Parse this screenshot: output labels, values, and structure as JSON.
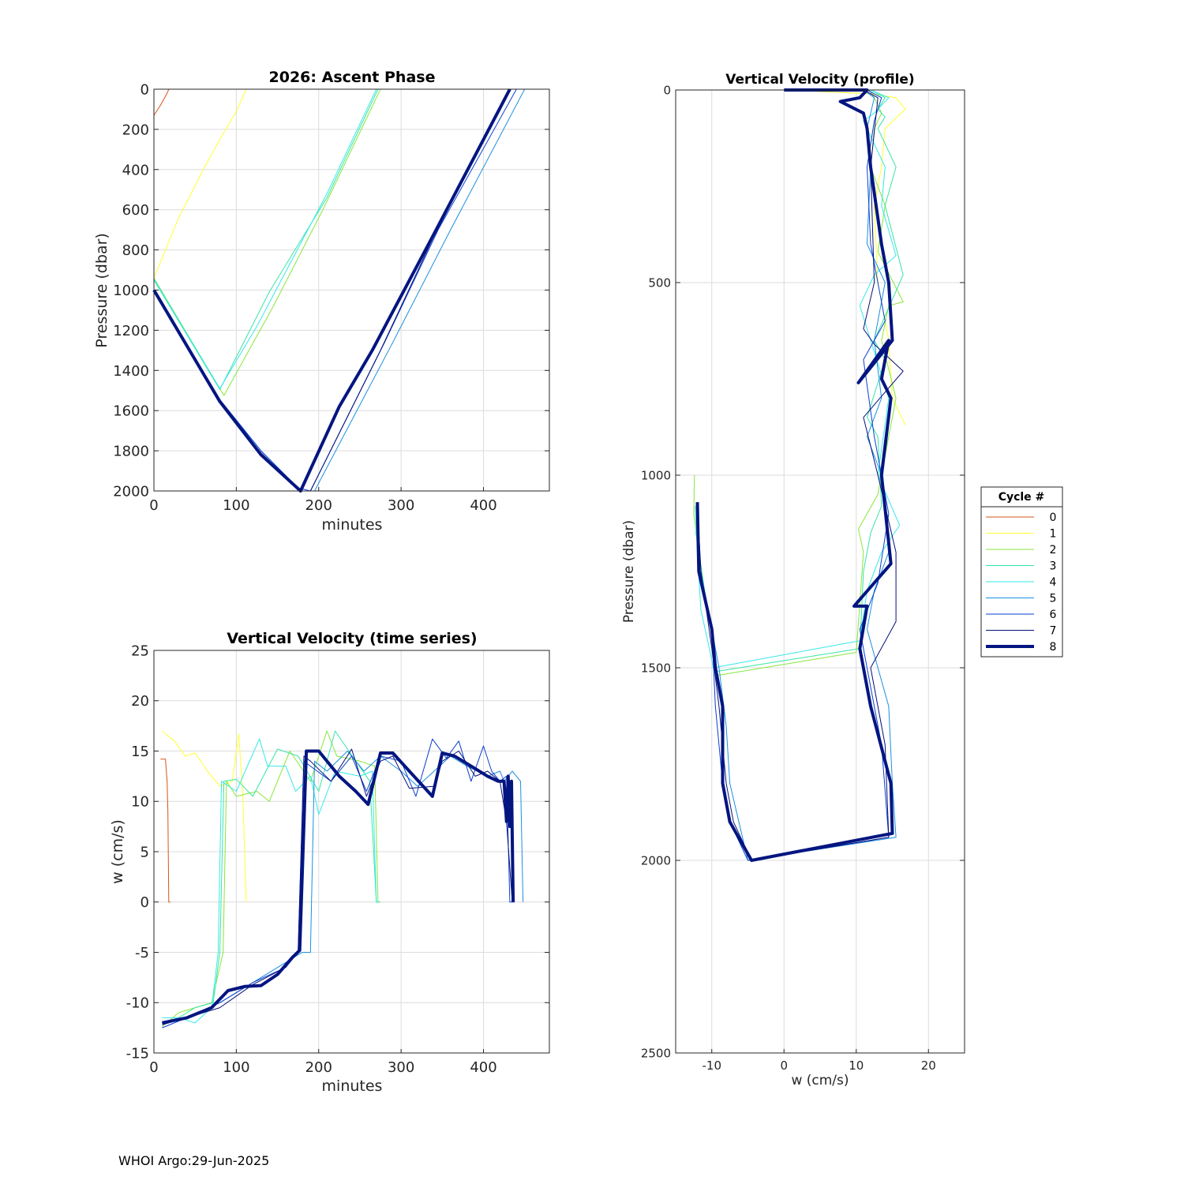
{
  "footer": "WHOI Argo:29-Jun-2025",
  "legend": {
    "title": "Cycle #",
    "entries": [
      "0",
      "1",
      "2",
      "3",
      "4",
      "5",
      "6",
      "7",
      "8"
    ],
    "colors": [
      "#d95319",
      "#ffff33",
      "#88e63c",
      "#36e6a4",
      "#36e8e8",
      "#1b8fe0",
      "#0a3fd0",
      "#06107a",
      "#041580"
    ]
  },
  "chart_data": [
    {
      "type": "line",
      "title": "2026: Ascent Phase",
      "xlabel": "minutes",
      "ylabel": "Pressure (dbar)",
      "xlim": [
        0,
        480
      ],
      "ylim": [
        0,
        2000
      ],
      "y_reversed": true,
      "grid": true,
      "xticks": [
        0,
        100,
        200,
        300,
        400
      ],
      "yticks": [
        0,
        200,
        400,
        600,
        800,
        1000,
        1200,
        1400,
        1600,
        1800,
        2000
      ],
      "series": [
        {
          "name": "0",
          "x": [
            0,
            8,
            16,
            18,
            22
          ],
          "y": [
            130,
            80,
            20,
            0,
            0
          ]
        },
        {
          "name": "1",
          "x": [
            0,
            30,
            60,
            80,
            100,
            112
          ],
          "y": [
            940,
            640,
            400,
            250,
            110,
            0
          ]
        },
        {
          "name": "2",
          "x": [
            0,
            85,
            145,
            205,
            275
          ],
          "y": [
            940,
            1525,
            1080,
            600,
            0
          ]
        },
        {
          "name": "3",
          "x": [
            0,
            80,
            140,
            210,
            272
          ],
          "y": [
            950,
            1495,
            1010,
            540,
            0
          ]
        },
        {
          "name": "4",
          "x": [
            0,
            80,
            125,
            210,
            270
          ],
          "y": [
            945,
            1490,
            1180,
            520,
            0
          ]
        },
        {
          "name": "5",
          "x": [
            0,
            80,
            130,
            178,
            195,
            290,
            360,
            450
          ],
          "y": [
            1010,
            1550,
            1800,
            2000,
            2000,
            1260,
            700,
            0
          ]
        },
        {
          "name": "6",
          "x": [
            0,
            80,
            130,
            175,
            190,
            280,
            345,
            440
          ],
          "y": [
            1005,
            1545,
            1800,
            1985,
            2000,
            1260,
            700,
            0
          ]
        },
        {
          "name": "7",
          "x": [
            0,
            80,
            130,
            178,
            190,
            275,
            340,
            432
          ],
          "y": [
            1000,
            1560,
            1810,
            2000,
            2000,
            1300,
            730,
            0
          ]
        },
        {
          "name": "8",
          "x": [
            0,
            80,
            130,
            178,
            225,
            265,
            340,
            432
          ],
          "y": [
            1000,
            1555,
            1820,
            2000,
            1580,
            1300,
            720,
            0
          ]
        }
      ]
    },
    {
      "type": "line",
      "title": "Vertical Velocity (time series)",
      "xlabel": "minutes",
      "ylabel": "w (cm/s)",
      "xlim": [
        0,
        480
      ],
      "ylim": [
        -15,
        25
      ],
      "grid": true,
      "xticks": [
        0,
        100,
        200,
        300,
        400
      ],
      "yticks": [
        -15,
        -10,
        -5,
        0,
        5,
        10,
        15,
        20,
        25
      ],
      "series": [
        {
          "name": "0",
          "x": [
            8,
            14,
            16,
            17,
            18,
            20
          ],
          "y": [
            14.2,
            14.2,
            12,
            9,
            0,
            0
          ]
        },
        {
          "name": "1",
          "x": [
            10,
            25,
            38,
            50,
            65,
            80,
            95,
            103,
            108,
            112
          ],
          "y": [
            17,
            16,
            14.5,
            14.8,
            13,
            11.5,
            12,
            16.7,
            10.5,
            0
          ]
        },
        {
          "name": "2",
          "x": [
            10,
            30,
            50,
            70,
            84,
            88,
            100,
            125,
            140,
            165,
            190,
            210,
            222,
            250,
            268,
            272,
            275
          ],
          "y": [
            -12.4,
            -11,
            -10.5,
            -10,
            -5,
            12,
            10.5,
            11,
            10,
            15,
            12,
            17,
            14.5,
            14,
            13.5,
            0,
            0
          ]
        },
        {
          "name": "3",
          "x": [
            10,
            30,
            50,
            72,
            80,
            85,
            100,
            120,
            150,
            175,
            200,
            220,
            245,
            262,
            270,
            274
          ],
          "y": [
            -12,
            -11.5,
            -10.5,
            -10,
            -5,
            12,
            12.2,
            10.5,
            15.2,
            14.5,
            11,
            17,
            14,
            12,
            0,
            0
          ]
        },
        {
          "name": "4",
          "x": [
            10,
            30,
            50,
            70,
            78,
            82,
            100,
            128,
            138,
            160,
            172,
            190,
            200,
            220,
            250,
            265,
            270,
            273
          ],
          "y": [
            -11.5,
            -11.5,
            -12,
            -10.5,
            -5,
            12,
            11,
            16.2,
            13.5,
            13.5,
            11,
            12.5,
            8.7,
            13,
            12.5,
            13,
            0,
            0
          ]
        },
        {
          "name": "5",
          "x": [
            10,
            40,
            80,
            120,
            160,
            180,
            190,
            195,
            210,
            235,
            255,
            275,
            300,
            320,
            340,
            360,
            380,
            405,
            420,
            425,
            435,
            445,
            448
          ],
          "y": [
            -12,
            -11.5,
            -10,
            -8,
            -6,
            -5,
            -5,
            14,
            13,
            15,
            13,
            14.5,
            13,
            11.5,
            13,
            14.5,
            13.5,
            12.5,
            13,
            12,
            13,
            12,
            0
          ]
        },
        {
          "name": "6",
          "x": [
            10,
            40,
            80,
            120,
            160,
            175,
            182,
            190,
            215,
            240,
            258,
            275,
            300,
            318,
            338,
            355,
            370,
            385,
            400,
            410,
            420,
            428,
            432,
            438
          ],
          "y": [
            -12.5,
            -11.5,
            -10,
            -8,
            -6.5,
            -5,
            14,
            13.5,
            12,
            14.5,
            11,
            14.5,
            14,
            10.5,
            16.2,
            14.3,
            16,
            12,
            15.5,
            13,
            12,
            12.5,
            0,
            0
          ]
        },
        {
          "name": "7",
          "x": [
            10,
            40,
            80,
            120,
            160,
            175,
            182,
            190,
            215,
            240,
            258,
            275,
            290,
            310,
            340,
            350,
            370,
            390,
            405,
            420,
            428,
            435
          ],
          "y": [
            -12.2,
            -11.5,
            -10.5,
            -8.2,
            -6.5,
            -4.8,
            14.5,
            14,
            12,
            15.2,
            10.5,
            14,
            14.5,
            11.3,
            11.5,
            14,
            15,
            12.5,
            13,
            12,
            8,
            0
          ]
        },
        {
          "name": "8",
          "x": [
            10,
            40,
            70,
            90,
            110,
            130,
            150,
            168,
            177,
            185,
            200,
            225,
            245,
            260,
            275,
            290,
            310,
            338,
            350,
            365,
            385,
            405,
            418,
            425,
            428,
            430,
            432,
            434,
            436
          ],
          "y": [
            -12,
            -11.5,
            -10.5,
            -8.8,
            -8.4,
            -8.3,
            -7.2,
            -5.5,
            -4.8,
            15,
            15,
            12.5,
            11,
            9.7,
            14.8,
            14.8,
            13,
            10.5,
            14.8,
            14.5,
            13.5,
            12.5,
            12,
            12,
            8,
            12.5,
            7.5,
            12,
            0
          ]
        }
      ]
    },
    {
      "type": "line",
      "title": "Vertical Velocity (profile)",
      "xlabel": "w (cm/s)",
      "ylabel": "Pressure (dbar)",
      "xlim": [
        -15,
        25
      ],
      "ylim": [
        0,
        2500
      ],
      "y_reversed": true,
      "grid": true,
      "xticks": [
        -10,
        0,
        10,
        20
      ],
      "yticks": [
        0,
        500,
        1000,
        1500,
        2000,
        2500
      ],
      "series": [
        {
          "name": "0",
          "x": [],
          "y": []
        },
        {
          "name": "1",
          "x": [
            0,
            12,
            15.5,
            16.8,
            14,
            13.5,
            12.5,
            13,
            14.5,
            15,
            16.8
          ],
          "y": [
            0,
            10,
            20,
            50,
            100,
            200,
            300,
            500,
            650,
            800,
            870
          ]
        },
        {
          "name": "2",
          "x": [
            -12.4,
            -12.5,
            -11,
            -10,
            -9.3,
            10,
            11,
            10.3,
            13,
            14.5,
            15.5,
            13.5,
            14.5,
            16.5,
            13,
            14,
            12,
            12.5,
            13.5,
            12.5,
            11.8
          ],
          "y": [
            1000,
            1100,
            1300,
            1400,
            1520,
            1460,
            1200,
            1140,
            1050,
            900,
            800,
            650,
            560,
            550,
            420,
            300,
            200,
            100,
            60,
            20,
            0
          ]
        },
        {
          "name": "3",
          "x": [
            -12,
            -12.2,
            -11,
            -10,
            -9.5,
            10.5,
            11,
            12,
            13.5,
            13,
            11.5,
            14,
            12.5,
            16.5,
            14,
            15.5,
            13,
            14,
            13,
            14,
            12
          ],
          "y": [
            1070,
            1150,
            1300,
            1400,
            1510,
            1450,
            1250,
            1150,
            1080,
            900,
            850,
            700,
            650,
            480,
            300,
            200,
            100,
            70,
            50,
            20,
            0
          ]
        },
        {
          "name": "4",
          "x": [
            -12.3,
            -12,
            -11.5,
            -10,
            -9.8,
            10.5,
            11.5,
            13.5,
            16,
            13,
            14.5,
            10.5,
            12.5,
            15.5,
            13.5,
            14,
            11,
            12.5,
            14.5,
            12
          ],
          "y": [
            1080,
            1200,
            1350,
            1480,
            1500,
            1430,
            1300,
            1200,
            1130,
            1000,
            800,
            560,
            480,
            430,
            300,
            200,
            80,
            60,
            20,
            0
          ]
        },
        {
          "name": "5",
          "x": [
            -12,
            -11.5,
            -9,
            -8,
            -7.5,
            -5,
            15.5,
            15,
            14.5,
            11.5,
            12.5,
            14.5,
            13.5,
            11.5,
            13.5,
            12.5,
            14,
            11.5,
            12,
            11.5,
            12.5,
            11
          ],
          "y": [
            1080,
            1250,
            1500,
            1650,
            1800,
            2000,
            1940,
            1800,
            1600,
            1400,
            1300,
            1200,
            1000,
            900,
            800,
            650,
            500,
            400,
            200,
            100,
            20,
            0
          ]
        },
        {
          "name": "6",
          "x": [
            -12,
            -11.8,
            -10,
            -9.5,
            -8.5,
            -7.5,
            -5,
            14.5,
            13.5,
            12,
            10.5,
            13,
            14.5,
            12.5,
            11,
            14,
            12,
            11.5,
            12.5,
            13.5,
            11.5
          ],
          "y": [
            1080,
            1250,
            1400,
            1600,
            1800,
            1900,
            2000,
            1940,
            1700,
            1550,
            1400,
            1280,
            1100,
            900,
            700,
            600,
            400,
            200,
            80,
            20,
            0
          ]
        },
        {
          "name": "7",
          "x": [
            -12,
            -11.5,
            -10,
            -9,
            -8,
            -7,
            -4.5,
            14.5,
            14,
            12,
            15.5,
            15.5,
            13,
            11,
            16.5,
            12.5,
            11,
            12.5,
            12,
            13,
            11
          ],
          "y": [
            1080,
            1250,
            1450,
            1600,
            1800,
            1900,
            2000,
            1940,
            1700,
            1500,
            1380,
            1200,
            1000,
            850,
            730,
            660,
            620,
            500,
            200,
            20,
            0
          ]
        },
        {
          "name": "8",
          "x": [
            -12,
            -11.8,
            -10,
            -9.5,
            -8.5,
            -8.5,
            -7.5,
            -4.5,
            15,
            14.8,
            12,
            10.5,
            11.5,
            9.7,
            14.8,
            13.5,
            14.8,
            13.5,
            14.5,
            10.3,
            15,
            14.5,
            13.5,
            12,
            11.5,
            11,
            7.8,
            10.5,
            11.5,
            0
          ],
          "y": [
            1070,
            1250,
            1400,
            1500,
            1600,
            1800,
            1900,
            2000,
            1930,
            1800,
            1600,
            1450,
            1340,
            1340,
            1230,
            1000,
            800,
            750,
            650,
            760,
            650,
            500,
            400,
            200,
            100,
            60,
            30,
            20,
            0,
            0
          ]
        }
      ]
    }
  ]
}
